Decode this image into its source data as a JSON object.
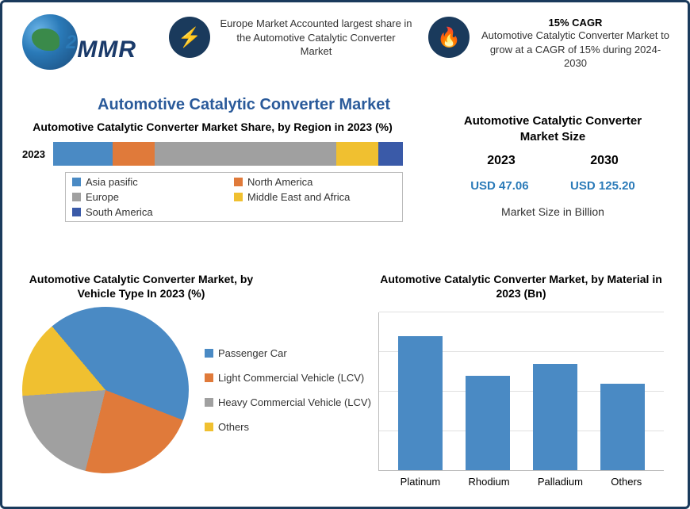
{
  "logo": {
    "text": "MMR"
  },
  "callout1": {
    "icon": "⚡",
    "text": "Europe Market Accounted largest share in the Automotive Catalytic Converter Market"
  },
  "callout2": {
    "icon": "🔥",
    "title": "15% CAGR",
    "text": "Automotive Catalytic Converter Market to grow at a CAGR of 15% during 2024-2030"
  },
  "main_title": "Automotive Catalytic Converter Market",
  "region_chart": {
    "title": "Automotive Catalytic Converter Market Share, by Region in 2023 (%)",
    "year": "2023",
    "type": "stacked-bar",
    "segments": [
      {
        "label": "Asia pasific",
        "value": 17,
        "color": "#4a8ac4"
      },
      {
        "label": "North America",
        "value": 12,
        "color": "#e07a3a"
      },
      {
        "label": "Europe",
        "value": 52,
        "color": "#a0a0a0"
      },
      {
        "label": "Middle East and Africa",
        "value": 12,
        "color": "#f0c030"
      },
      {
        "label": "South America",
        "value": 7,
        "color": "#3a5aa8"
      }
    ]
  },
  "market_size": {
    "title": "Automotive Catalytic Converter Market Size",
    "year_a": "2023",
    "year_b": "2030",
    "value_a": "USD 47.06",
    "value_b": "USD 125.20",
    "caption": "Market Size in Billion",
    "value_color": "#2a7ab8"
  },
  "pie_chart": {
    "title": "Automotive Catalytic Converter Market, by Vehicle Type In 2023 (%)",
    "type": "pie",
    "slices": [
      {
        "label": "Passenger Car",
        "value": 42,
        "color": "#4a8ac4"
      },
      {
        "label": "Light Commercial Vehicle (LCV)",
        "value": 23,
        "color": "#e07a3a"
      },
      {
        "label": "Heavy Commercial Vehicle (LCV)",
        "value": 20,
        "color": "#a0a0a0"
      },
      {
        "label": "Others",
        "value": 15,
        "color": "#f0c030"
      }
    ]
  },
  "bar_chart": {
    "title": "Automotive Catalytic Converter Market, by Material in 2023 (Bn)",
    "type": "bar",
    "ylim": [
      0,
      20
    ],
    "grid_steps": 4,
    "grid_color": "#e0e0e0",
    "bar_color": "#4a8ac4",
    "bars": [
      {
        "label": "Platinum",
        "value": 17
      },
      {
        "label": "Rhodium",
        "value": 12
      },
      {
        "label": "Palladium",
        "value": 13.5
      },
      {
        "label": "Others",
        "value": 11
      }
    ]
  },
  "colors": {
    "border": "#1a3a5c",
    "title": "#2a5a9a"
  }
}
